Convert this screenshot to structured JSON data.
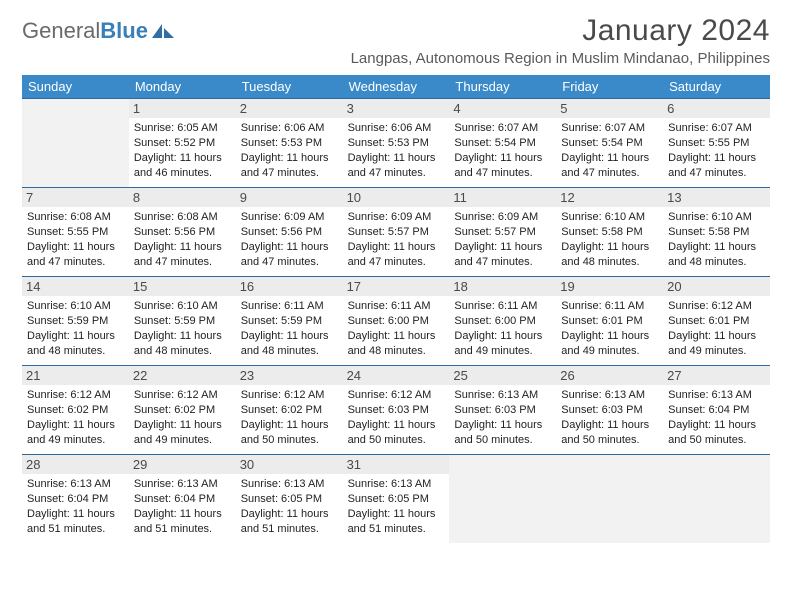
{
  "logo": {
    "text1": "General",
    "text2": "Blue"
  },
  "header": {
    "month_year": "January 2024",
    "location": "Langpas, Autonomous Region in Muslim Mindanao, Philippines"
  },
  "colors": {
    "header_band": "#3a8ac9",
    "week_divider": "#2d6aa0",
    "num_strip": "#ececec",
    "empty_cell": "#f2f2f2",
    "text": "#222222",
    "muted_text": "#4a4a4a",
    "logo_gray": "#6a6a6a",
    "logo_blue": "#3a7fb8"
  },
  "typography": {
    "title_fontsize": 30,
    "location_fontsize": 15,
    "dow_fontsize": 13,
    "daynum_fontsize": 13,
    "body_fontsize": 11,
    "font_family": "Arial"
  },
  "dow": [
    "Sunday",
    "Monday",
    "Tuesday",
    "Wednesday",
    "Thursday",
    "Friday",
    "Saturday"
  ],
  "grid_columns": 7,
  "grid_rows": 5,
  "days": [
    null,
    {
      "n": "1",
      "sunrise": "6:05 AM",
      "sunset": "5:52 PM",
      "daylight": "11 hours and 46 minutes."
    },
    {
      "n": "2",
      "sunrise": "6:06 AM",
      "sunset": "5:53 PM",
      "daylight": "11 hours and 47 minutes."
    },
    {
      "n": "3",
      "sunrise": "6:06 AM",
      "sunset": "5:53 PM",
      "daylight": "11 hours and 47 minutes."
    },
    {
      "n": "4",
      "sunrise": "6:07 AM",
      "sunset": "5:54 PM",
      "daylight": "11 hours and 47 minutes."
    },
    {
      "n": "5",
      "sunrise": "6:07 AM",
      "sunset": "5:54 PM",
      "daylight": "11 hours and 47 minutes."
    },
    {
      "n": "6",
      "sunrise": "6:07 AM",
      "sunset": "5:55 PM",
      "daylight": "11 hours and 47 minutes."
    },
    {
      "n": "7",
      "sunrise": "6:08 AM",
      "sunset": "5:55 PM",
      "daylight": "11 hours and 47 minutes."
    },
    {
      "n": "8",
      "sunrise": "6:08 AM",
      "sunset": "5:56 PM",
      "daylight": "11 hours and 47 minutes."
    },
    {
      "n": "9",
      "sunrise": "6:09 AM",
      "sunset": "5:56 PM",
      "daylight": "11 hours and 47 minutes."
    },
    {
      "n": "10",
      "sunrise": "6:09 AM",
      "sunset": "5:57 PM",
      "daylight": "11 hours and 47 minutes."
    },
    {
      "n": "11",
      "sunrise": "6:09 AM",
      "sunset": "5:57 PM",
      "daylight": "11 hours and 47 minutes."
    },
    {
      "n": "12",
      "sunrise": "6:10 AM",
      "sunset": "5:58 PM",
      "daylight": "11 hours and 48 minutes."
    },
    {
      "n": "13",
      "sunrise": "6:10 AM",
      "sunset": "5:58 PM",
      "daylight": "11 hours and 48 minutes."
    },
    {
      "n": "14",
      "sunrise": "6:10 AM",
      "sunset": "5:59 PM",
      "daylight": "11 hours and 48 minutes."
    },
    {
      "n": "15",
      "sunrise": "6:10 AM",
      "sunset": "5:59 PM",
      "daylight": "11 hours and 48 minutes."
    },
    {
      "n": "16",
      "sunrise": "6:11 AM",
      "sunset": "5:59 PM",
      "daylight": "11 hours and 48 minutes."
    },
    {
      "n": "17",
      "sunrise": "6:11 AM",
      "sunset": "6:00 PM",
      "daylight": "11 hours and 48 minutes."
    },
    {
      "n": "18",
      "sunrise": "6:11 AM",
      "sunset": "6:00 PM",
      "daylight": "11 hours and 49 minutes."
    },
    {
      "n": "19",
      "sunrise": "6:11 AM",
      "sunset": "6:01 PM",
      "daylight": "11 hours and 49 minutes."
    },
    {
      "n": "20",
      "sunrise": "6:12 AM",
      "sunset": "6:01 PM",
      "daylight": "11 hours and 49 minutes."
    },
    {
      "n": "21",
      "sunrise": "6:12 AM",
      "sunset": "6:02 PM",
      "daylight": "11 hours and 49 minutes."
    },
    {
      "n": "22",
      "sunrise": "6:12 AM",
      "sunset": "6:02 PM",
      "daylight": "11 hours and 49 minutes."
    },
    {
      "n": "23",
      "sunrise": "6:12 AM",
      "sunset": "6:02 PM",
      "daylight": "11 hours and 50 minutes."
    },
    {
      "n": "24",
      "sunrise": "6:12 AM",
      "sunset": "6:03 PM",
      "daylight": "11 hours and 50 minutes."
    },
    {
      "n": "25",
      "sunrise": "6:13 AM",
      "sunset": "6:03 PM",
      "daylight": "11 hours and 50 minutes."
    },
    {
      "n": "26",
      "sunrise": "6:13 AM",
      "sunset": "6:03 PM",
      "daylight": "11 hours and 50 minutes."
    },
    {
      "n": "27",
      "sunrise": "6:13 AM",
      "sunset": "6:04 PM",
      "daylight": "11 hours and 50 minutes."
    },
    {
      "n": "28",
      "sunrise": "6:13 AM",
      "sunset": "6:04 PM",
      "daylight": "11 hours and 51 minutes."
    },
    {
      "n": "29",
      "sunrise": "6:13 AM",
      "sunset": "6:04 PM",
      "daylight": "11 hours and 51 minutes."
    },
    {
      "n": "30",
      "sunrise": "6:13 AM",
      "sunset": "6:05 PM",
      "daylight": "11 hours and 51 minutes."
    },
    {
      "n": "31",
      "sunrise": "6:13 AM",
      "sunset": "6:05 PM",
      "daylight": "11 hours and 51 minutes."
    },
    null,
    null,
    null
  ],
  "labels": {
    "sunrise_prefix": "Sunrise: ",
    "sunset_prefix": "Sunset: ",
    "daylight_prefix": "Daylight: "
  }
}
